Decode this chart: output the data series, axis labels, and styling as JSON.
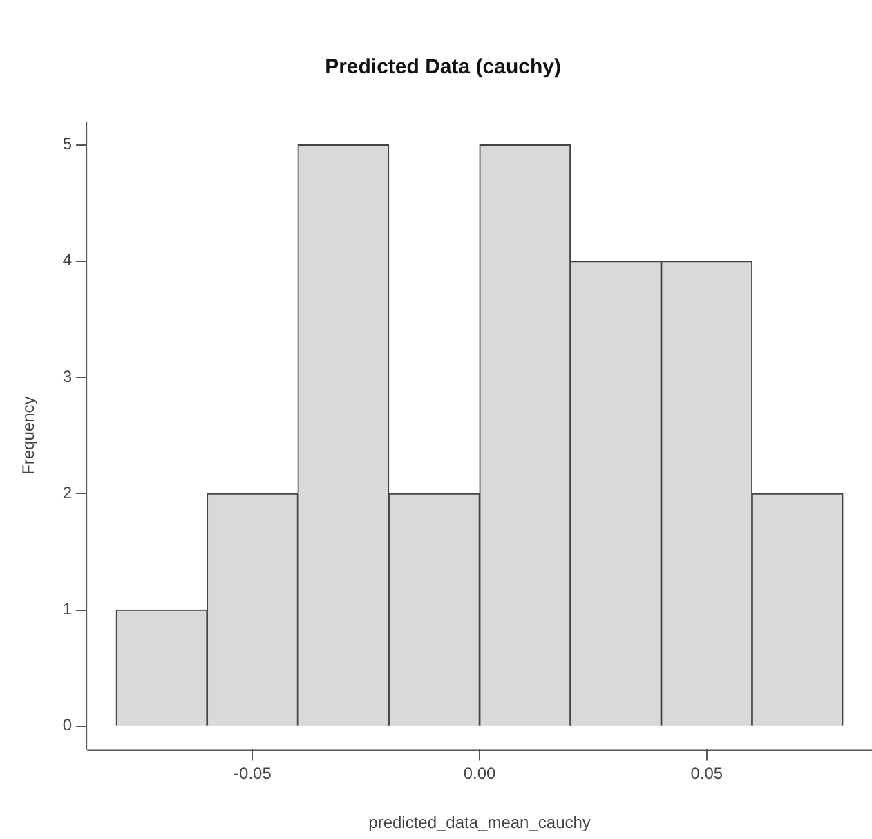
{
  "chart_data": {
    "type": "histogram",
    "title": "Predicted Data (cauchy)",
    "xlabel": "predicted_data_mean_cauchy",
    "ylabel": "Frequency",
    "bins": [
      -0.08,
      -0.06,
      -0.04,
      -0.02,
      0,
      0.02,
      0.04,
      0.06,
      0.08
    ],
    "values": [
      1,
      2,
      5,
      2,
      5,
      4,
      4,
      2
    ],
    "color": "#d9d9d9",
    "xlim": [
      -0.0864,
      0.0864
    ],
    "xticks": [
      -0.05,
      {
        "value": 0,
        "label": "0.00"
      },
      0.05
    ],
    "ylim": [
      -0.2,
      5.2
    ],
    "yticks": [
      0,
      1,
      2,
      3,
      4,
      5
    ],
    "grid": false,
    "legend": false
  }
}
